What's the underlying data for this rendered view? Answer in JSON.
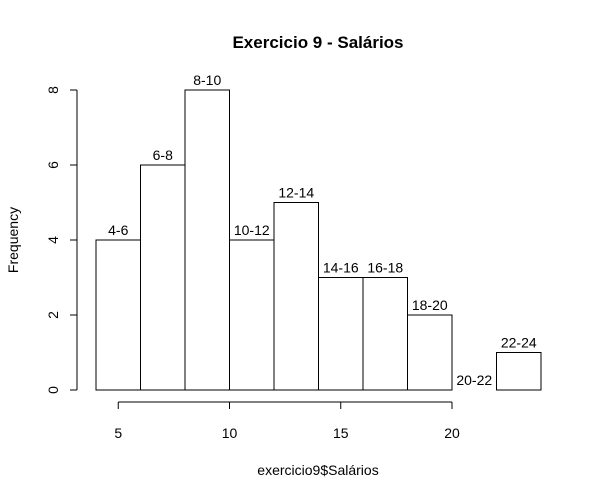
{
  "chart_data": {
    "type": "bar",
    "title": "Exercicio 9 - Salários",
    "xlabel": "exercicio9$Salários",
    "ylabel": "Frequency",
    "bins": [
      {
        "label": "4-6",
        "start": 4,
        "end": 6,
        "count": 4
      },
      {
        "label": "6-8",
        "start": 6,
        "end": 8,
        "count": 6
      },
      {
        "label": "8-10",
        "start": 8,
        "end": 10,
        "count": 8
      },
      {
        "label": "10-12",
        "start": 10,
        "end": 12,
        "count": 4
      },
      {
        "label": "12-14",
        "start": 12,
        "end": 14,
        "count": 5
      },
      {
        "label": "14-16",
        "start": 14,
        "end": 16,
        "count": 3
      },
      {
        "label": "16-18",
        "start": 16,
        "end": 18,
        "count": 3
      },
      {
        "label": "18-20",
        "start": 18,
        "end": 20,
        "count": 2
      },
      {
        "label": "20-22",
        "start": 20,
        "end": 22,
        "count": 0
      },
      {
        "label": "22-24",
        "start": 22,
        "end": 24,
        "count": 1
      }
    ],
    "x_ticks": [
      5,
      10,
      15,
      20
    ],
    "y_ticks": [
      0,
      2,
      4,
      6,
      8
    ],
    "xlim": [
      4,
      24
    ],
    "ylim": [
      0,
      8
    ],
    "grid": false,
    "legend": "none"
  }
}
